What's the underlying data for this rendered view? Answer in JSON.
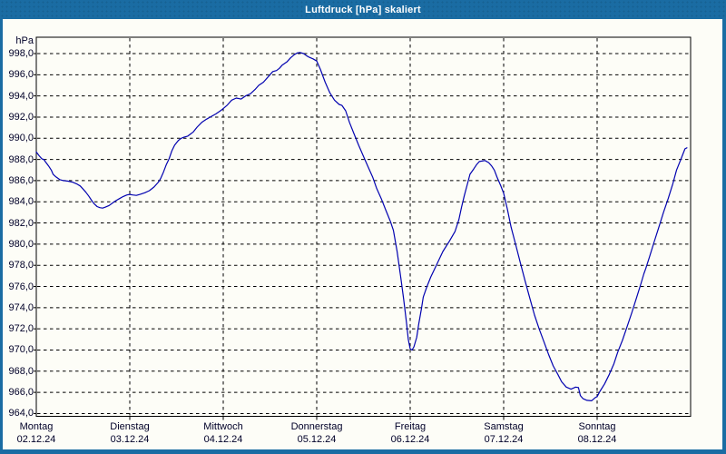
{
  "window": {
    "title": "Luftdruck [hPa] skaliert"
  },
  "colors": {
    "titlebar": "#1a6ca3",
    "window_border": "#1a6ca3",
    "curve": "#0202b0",
    "grid": "#000000",
    "axis": "#000000",
    "label_text": "#000028",
    "plot_background": "#fdfdf7"
  },
  "chart_data": {
    "type": "line",
    "title": "Luftdruck [hPa] skaliert",
    "xlabel": "",
    "ylabel": "hPa",
    "ylim": [
      964,
      998
    ],
    "y_tick_step": 2,
    "y_tick_labels": [
      "998,0",
      "996,0",
      "994,0",
      "992,0",
      "990,0",
      "988,0",
      "986,0",
      "984,0",
      "982,0",
      "980,0",
      "978,0",
      "976,0",
      "974,0",
      "972,0",
      "970,0",
      "968,0",
      "966,0",
      "964,0"
    ],
    "grid": "dashed",
    "legend_position": "none",
    "x_days": [
      {
        "name": "Montag",
        "date": "02.12.24"
      },
      {
        "name": "Dienstag",
        "date": "03.12.24"
      },
      {
        "name": "Mittwoch",
        "date": "04.12.24"
      },
      {
        "name": "Donnerstag",
        "date": "05.12.24"
      },
      {
        "name": "Freitag",
        "date": "06.12.24"
      },
      {
        "name": "Samstag",
        "date": "07.12.24"
      },
      {
        "name": "Sonntag",
        "date": "08.12.24"
      }
    ],
    "series": [
      {
        "name": "Luftdruck",
        "unit": "hPa",
        "points": [
          [
            0.0,
            988.7
          ],
          [
            0.03,
            988.35
          ],
          [
            0.06,
            988.05
          ],
          [
            0.08,
            988.0
          ],
          [
            0.1,
            987.75
          ],
          [
            0.13,
            987.4
          ],
          [
            0.16,
            987.0
          ],
          [
            0.18,
            986.6
          ],
          [
            0.21,
            986.35
          ],
          [
            0.25,
            986.1
          ],
          [
            0.29,
            986.0
          ],
          [
            0.34,
            985.95
          ],
          [
            0.39,
            985.85
          ],
          [
            0.43,
            985.7
          ],
          [
            0.47,
            985.5
          ],
          [
            0.5,
            985.2
          ],
          [
            0.53,
            984.9
          ],
          [
            0.56,
            984.55
          ],
          [
            0.59,
            984.15
          ],
          [
            0.62,
            983.8
          ],
          [
            0.65,
            983.55
          ],
          [
            0.68,
            983.45
          ],
          [
            0.71,
            983.4
          ],
          [
            0.74,
            983.5
          ],
          [
            0.78,
            983.65
          ],
          [
            0.81,
            983.85
          ],
          [
            0.85,
            984.1
          ],
          [
            0.89,
            984.3
          ],
          [
            0.93,
            984.5
          ],
          [
            0.97,
            984.65
          ],
          [
            1.0,
            984.7
          ],
          [
            1.03,
            984.65
          ],
          [
            1.07,
            984.6
          ],
          [
            1.11,
            984.7
          ],
          [
            1.16,
            984.85
          ],
          [
            1.21,
            985.05
          ],
          [
            1.26,
            985.4
          ],
          [
            1.31,
            985.9
          ],
          [
            1.33,
            986.2
          ],
          [
            1.36,
            986.8
          ],
          [
            1.39,
            987.5
          ],
          [
            1.42,
            988.05
          ],
          [
            1.45,
            988.8
          ],
          [
            1.48,
            989.35
          ],
          [
            1.52,
            989.8
          ],
          [
            1.55,
            990.0
          ],
          [
            1.58,
            990.1
          ],
          [
            1.62,
            990.2
          ],
          [
            1.65,
            990.4
          ],
          [
            1.68,
            990.6
          ],
          [
            1.72,
            991.05
          ],
          [
            1.77,
            991.5
          ],
          [
            1.82,
            991.8
          ],
          [
            1.87,
            992.05
          ],
          [
            1.92,
            992.3
          ],
          [
            1.97,
            992.6
          ],
          [
            2.0,
            992.8
          ],
          [
            2.04,
            993.1
          ],
          [
            2.09,
            993.6
          ],
          [
            2.14,
            993.8
          ],
          [
            2.19,
            993.7
          ],
          [
            2.24,
            994.0
          ],
          [
            2.29,
            994.2
          ],
          [
            2.34,
            994.6
          ],
          [
            2.38,
            995.0
          ],
          [
            2.43,
            995.3
          ],
          [
            2.48,
            995.8
          ],
          [
            2.53,
            996.3
          ],
          [
            2.57,
            996.4
          ],
          [
            2.6,
            996.6
          ],
          [
            2.63,
            996.9
          ],
          [
            2.68,
            997.2
          ],
          [
            2.72,
            997.6
          ],
          [
            2.76,
            997.9
          ],
          [
            2.79,
            998.05
          ],
          [
            2.82,
            998.1
          ],
          [
            2.86,
            998.0
          ],
          [
            2.89,
            997.8
          ],
          [
            2.92,
            997.65
          ],
          [
            2.96,
            997.5
          ],
          [
            3.0,
            997.3
          ],
          [
            3.04,
            996.5
          ],
          [
            3.09,
            995.3
          ],
          [
            3.14,
            994.3
          ],
          [
            3.19,
            993.6
          ],
          [
            3.24,
            993.2
          ],
          [
            3.27,
            993.1
          ],
          [
            3.31,
            992.6
          ],
          [
            3.35,
            991.5
          ],
          [
            3.4,
            990.4
          ],
          [
            3.45,
            989.3
          ],
          [
            3.5,
            988.3
          ],
          [
            3.55,
            987.3
          ],
          [
            3.6,
            986.3
          ],
          [
            3.64,
            985.3
          ],
          [
            3.69,
            984.3
          ],
          [
            3.74,
            983.2
          ],
          [
            3.79,
            982.1
          ],
          [
            3.82,
            981.3
          ],
          [
            3.86,
            979.3
          ],
          [
            3.9,
            976.8
          ],
          [
            3.93,
            974.8
          ],
          [
            3.96,
            972.6
          ],
          [
            3.98,
            971.0
          ],
          [
            4.0,
            970.1
          ],
          [
            4.02,
            970.0
          ],
          [
            4.04,
            970.3
          ],
          [
            4.07,
            971.2
          ],
          [
            4.09,
            972.4
          ],
          [
            4.12,
            973.9
          ],
          [
            4.14,
            975.0
          ],
          [
            4.18,
            976.0
          ],
          [
            4.22,
            976.9
          ],
          [
            4.28,
            978.0
          ],
          [
            4.35,
            979.3
          ],
          [
            4.42,
            980.3
          ],
          [
            4.48,
            981.2
          ],
          [
            4.52,
            982.3
          ],
          [
            4.55,
            983.5
          ],
          [
            4.58,
            984.6
          ],
          [
            4.61,
            985.6
          ],
          [
            4.64,
            986.6
          ],
          [
            4.68,
            987.1
          ],
          [
            4.71,
            987.5
          ],
          [
            4.74,
            987.8
          ],
          [
            4.8,
            987.9
          ],
          [
            4.84,
            987.7
          ],
          [
            4.87,
            987.4
          ],
          [
            4.9,
            987.0
          ],
          [
            4.93,
            986.3
          ],
          [
            4.97,
            985.5
          ],
          [
            5.0,
            984.8
          ],
          [
            5.04,
            983.3
          ],
          [
            5.08,
            981.6
          ],
          [
            5.13,
            979.9
          ],
          [
            5.18,
            978.2
          ],
          [
            5.23,
            976.5
          ],
          [
            5.28,
            974.9
          ],
          [
            5.33,
            973.3
          ],
          [
            5.38,
            972.0
          ],
          [
            5.43,
            970.8
          ],
          [
            5.48,
            969.6
          ],
          [
            5.53,
            968.5
          ],
          [
            5.58,
            967.7
          ],
          [
            5.62,
            967.0
          ],
          [
            5.67,
            966.5
          ],
          [
            5.72,
            966.3
          ],
          [
            5.77,
            966.5
          ],
          [
            5.8,
            966.45
          ],
          [
            5.82,
            965.7
          ],
          [
            5.85,
            965.4
          ],
          [
            5.89,
            965.25
          ],
          [
            5.94,
            965.2
          ],
          [
            5.98,
            965.5
          ],
          [
            6.0,
            965.6
          ],
          [
            6.03,
            966.1
          ],
          [
            6.08,
            966.8
          ],
          [
            6.13,
            967.7
          ],
          [
            6.18,
            968.7
          ],
          [
            6.22,
            969.8
          ],
          [
            6.27,
            970.9
          ],
          [
            6.32,
            972.2
          ],
          [
            6.37,
            973.5
          ],
          [
            6.42,
            974.9
          ],
          [
            6.47,
            976.3
          ],
          [
            6.5,
            977.2
          ],
          [
            6.52,
            977.7
          ],
          [
            6.56,
            978.8
          ],
          [
            6.61,
            980.2
          ],
          [
            6.66,
            981.6
          ],
          [
            6.71,
            983.0
          ],
          [
            6.76,
            984.3
          ],
          [
            6.81,
            985.7
          ],
          [
            6.85,
            987.0
          ],
          [
            6.9,
            988.1
          ],
          [
            6.94,
            989.0
          ],
          [
            6.96,
            989.1
          ]
        ]
      }
    ]
  }
}
